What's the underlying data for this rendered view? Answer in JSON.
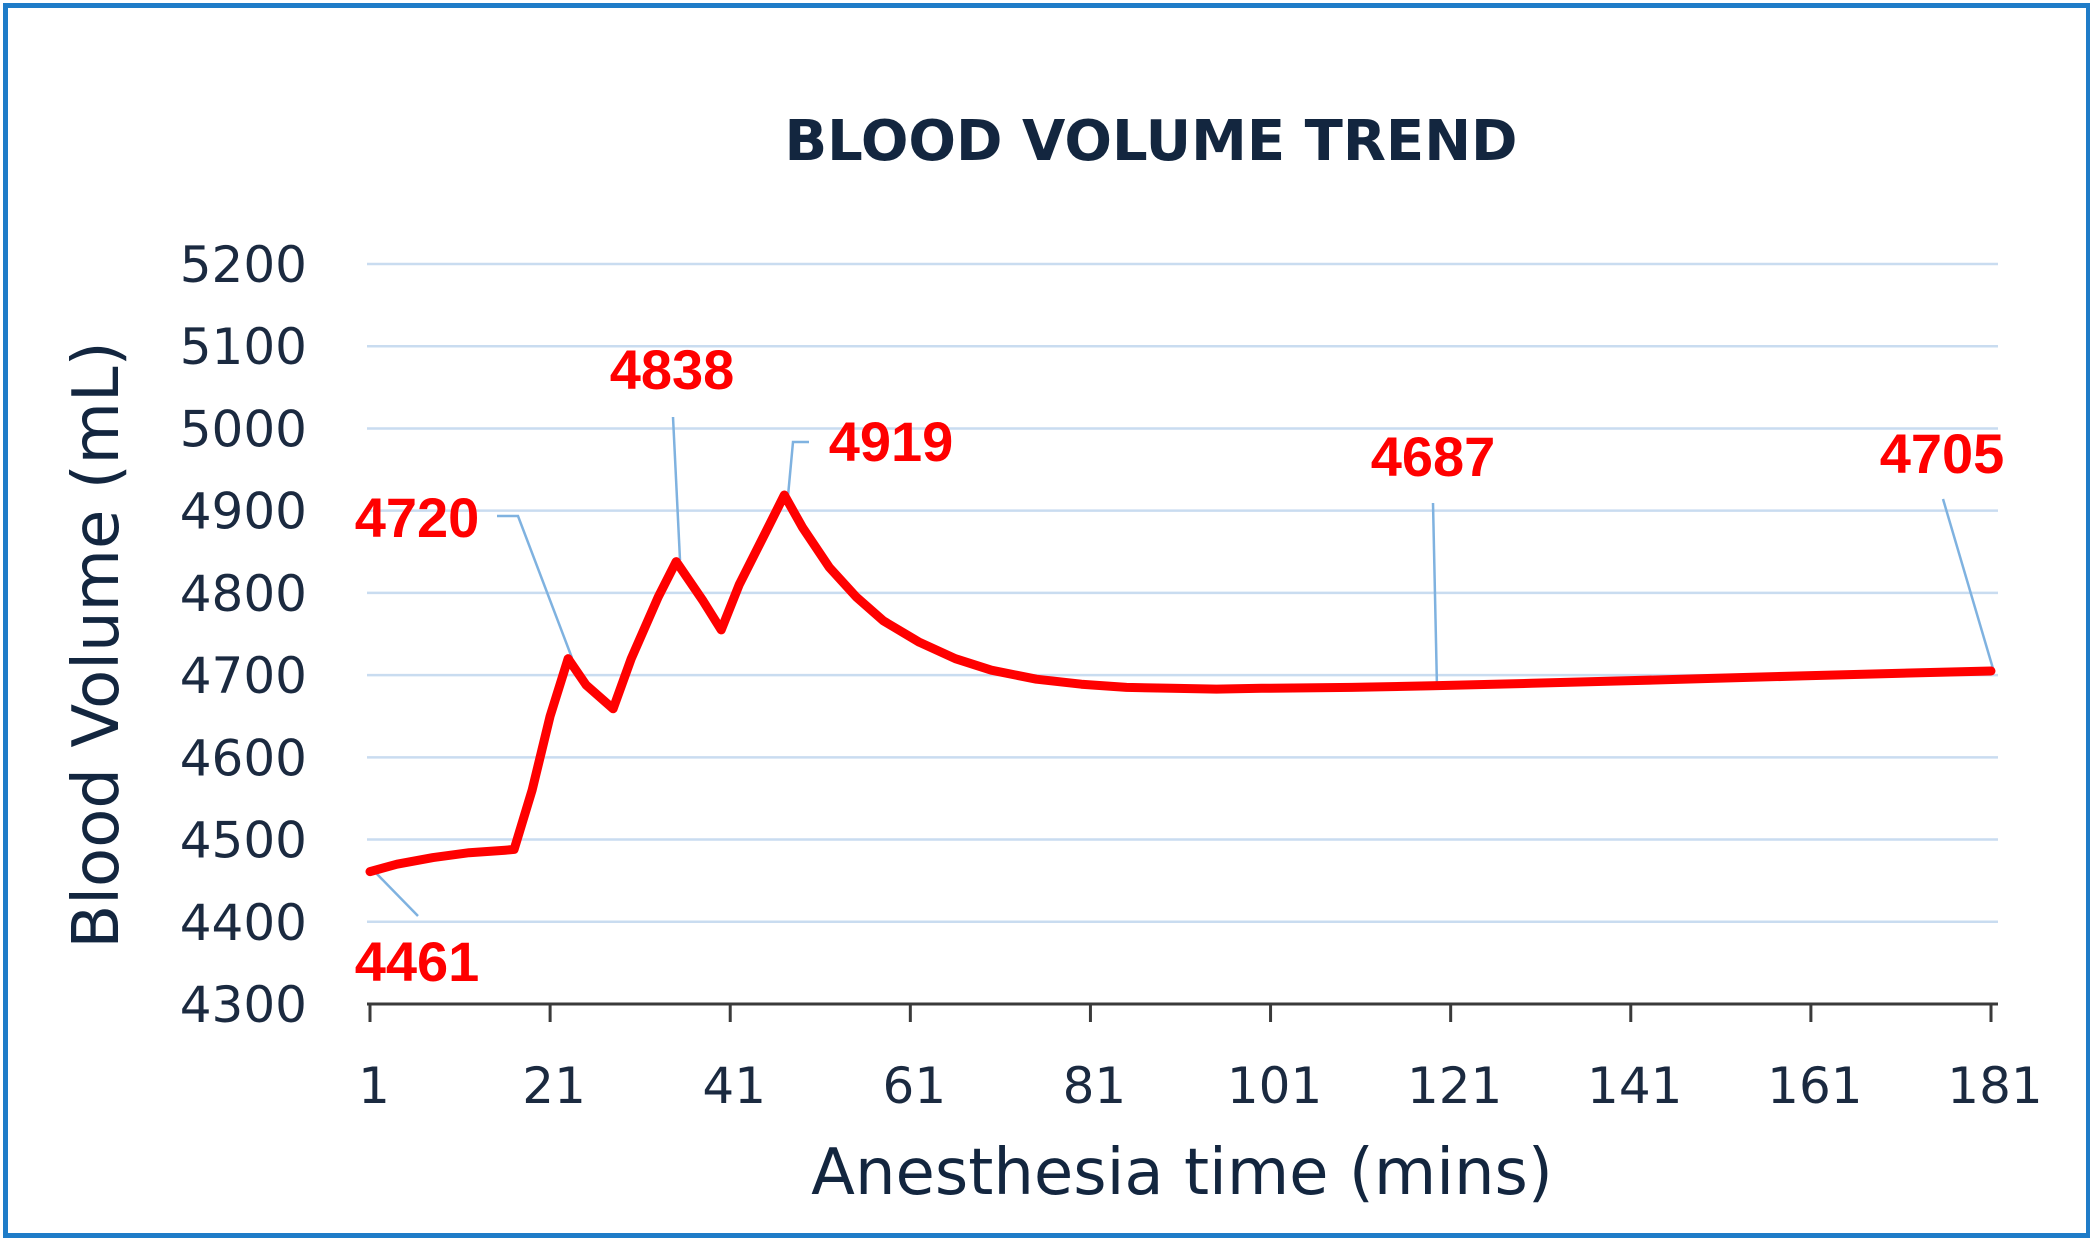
{
  "chart_data": {
    "type": "line",
    "title": "BLOOD VOLUME TREND",
    "xlabel": "Anesthesia time (mins)",
    "ylabel": "Blood Volume  (mL)",
    "xlim": [
      1,
      181
    ],
    "ylim": [
      4300,
      5200
    ],
    "x_ticks": [
      1,
      21,
      41,
      61,
      81,
      101,
      121,
      141,
      161,
      181
    ],
    "y_ticks": [
      4300,
      4400,
      4500,
      4600,
      4700,
      4800,
      4900,
      5000,
      5100,
      5200
    ],
    "grid": true,
    "legend": "none",
    "color": "#ff0000",
    "series": [
      {
        "name": "Blood Volume",
        "x": [
          1,
          4,
          8,
          12,
          16,
          17,
          19,
          21,
          23,
          25,
          28,
          30,
          33,
          35,
          38,
          40,
          42,
          45,
          47,
          49,
          52,
          55,
          58,
          62,
          66,
          70,
          75,
          80,
          85,
          90,
          95,
          100,
          110,
          119,
          130,
          140,
          150,
          160,
          170,
          181
        ],
        "y": [
          4461,
          4470,
          4478,
          4484,
          4487,
          4488,
          4560,
          4650,
          4720,
          4688,
          4659,
          4720,
          4795,
          4838,
          4790,
          4755,
          4810,
          4875,
          4919,
          4880,
          4831,
          4795,
          4766,
          4740,
          4720,
          4706,
          4695,
          4689,
          4685,
          4684,
          4683,
          4684,
          4685,
          4687,
          4690,
          4693,
          4696,
          4699,
          4702,
          4705
        ]
      }
    ],
    "annotations": [
      {
        "x": 1,
        "y": 4461,
        "text": "4461"
      },
      {
        "x": 23,
        "y": 4720,
        "text": "4720"
      },
      {
        "x": 35,
        "y": 4838,
        "text": "4838"
      },
      {
        "x": 47,
        "y": 4919,
        "text": "4919"
      },
      {
        "x": 119,
        "y": 4687,
        "text": "4687"
      },
      {
        "x": 181,
        "y": 4705,
        "text": "4705"
      }
    ]
  }
}
